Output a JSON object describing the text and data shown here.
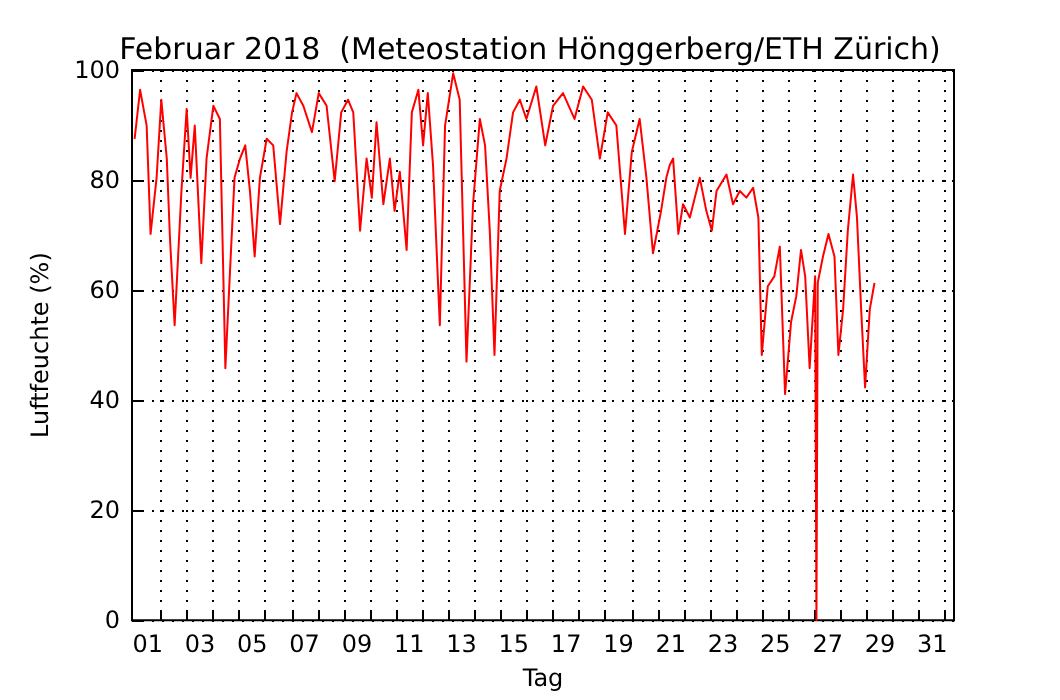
{
  "chart_data": {
    "type": "line",
    "title": "Februar 2018  (Meteostation Hönggerberg/ETH Zürich)",
    "xlabel": "Tag",
    "ylabel": "Luftfeuchte (%)",
    "x": [
      1.0,
      1.21,
      1.46,
      1.61,
      1.84,
      2.02,
      2.23,
      2.35,
      2.53,
      2.79,
      2.99,
      3.14,
      3.3,
      3.55,
      3.75,
      4.01,
      4.26,
      4.47,
      4.65,
      4.82,
      5.03,
      5.23,
      5.41,
      5.59,
      5.79,
      6.05,
      6.3,
      6.56,
      6.81,
      7.02,
      7.19,
      7.45,
      7.78,
      8.04,
      8.34,
      8.65,
      8.9,
      9.16,
      9.36,
      9.62,
      9.87,
      10.07,
      10.25,
      10.51,
      10.76,
      10.94,
      11.14,
      11.4,
      11.6,
      11.85,
      12.03,
      12.21,
      12.41,
      12.67,
      12.87,
      13.18,
      13.43,
      13.69,
      13.94,
      14.2,
      14.4,
      14.58,
      14.76,
      14.96,
      15.22,
      15.47,
      15.73,
      15.98,
      16.36,
      16.7,
      17.0,
      17.38,
      17.82,
      18.15,
      18.48,
      18.79,
      19.09,
      19.42,
      19.75,
      20.01,
      20.31,
      20.57,
      20.82,
      21.13,
      21.33,
      21.46,
      21.59,
      21.79,
      21.97,
      22.23,
      22.61,
      22.86,
      23.07,
      23.25,
      23.63,
      23.88,
      24.14,
      24.39,
      24.65,
      24.85,
      24.98,
      25.21,
      25.46,
      25.67,
      25.87,
      26.1,
      26.3,
      26.48,
      26.64,
      26.81,
      27.02,
      27.07,
      27.12,
      27.32,
      27.53,
      27.76,
      27.91,
      28.09,
      28.27,
      28.47,
      28.62,
      28.78,
      28.93,
      29.11,
      29.29
    ],
    "series": [
      {
        "color": "#ff0000",
        "values": [
          87.5,
          96.4,
          89.9,
          70.2,
          80.4,
          94.6,
          83.9,
          69.6,
          53.6,
          78,
          92.9,
          80.4,
          89.9,
          64.9,
          83.9,
          93.5,
          91.1,
          45.8,
          63.7,
          80.4,
          83.9,
          86.3,
          78,
          66.1,
          80.4,
          87.5,
          86.3,
          72,
          85.1,
          92.3,
          95.8,
          93.5,
          88.7,
          95.8,
          93.5,
          79.8,
          92.3,
          94.6,
          92.3,
          70.8,
          83.9,
          76.8,
          90.5,
          75.6,
          83.9,
          74.4,
          81.5,
          67.3,
          92.3,
          96.4,
          86.3,
          95.8,
          82.7,
          53.6,
          89.9,
          99.4,
          94.6,
          47,
          75.6,
          91.1,
          86.3,
          70.8,
          48.2,
          78,
          83.9,
          92.3,
          94.6,
          91.1,
          97,
          86.3,
          93.5,
          95.8,
          91.1,
          97,
          94.6,
          83.9,
          92.3,
          89.9,
          70.2,
          85.1,
          91.1,
          80.4,
          66.7,
          74.4,
          80.4,
          82.7,
          83.9,
          70.2,
          75.6,
          73.2,
          80.4,
          74.4,
          70.8,
          78,
          81,
          75.6,
          78,
          76.8,
          78.6,
          73.2,
          48.2,
          60.7,
          62.5,
          67.9,
          41.1,
          54.2,
          58.9,
          67.3,
          62.5,
          45.8,
          62.5,
          0,
          61.3,
          66.1,
          70.2,
          66.1,
          48.2,
          56.5,
          70.8,
          81,
          73.2,
          56.5,
          42.3,
          56.5,
          61.3
        ]
      }
    ],
    "xlim": [
      0.9,
      32.33
    ],
    "xticks": [
      {
        "value": 1.5,
        "label": "01"
      },
      {
        "value": 3.5,
        "label": "03"
      },
      {
        "value": 5.5,
        "label": "05"
      },
      {
        "value": 7.5,
        "label": "07"
      },
      {
        "value": 9.5,
        "label": "09"
      },
      {
        "value": 11.5,
        "label": "11"
      },
      {
        "value": 13.5,
        "label": "13"
      },
      {
        "value": 15.5,
        "label": "15"
      },
      {
        "value": 17.5,
        "label": "17"
      },
      {
        "value": 19.5,
        "label": "19"
      },
      {
        "value": 21.5,
        "label": "21"
      },
      {
        "value": 23.5,
        "label": "23"
      },
      {
        "value": 25.5,
        "label": "25"
      },
      {
        "value": 27.5,
        "label": "27"
      },
      {
        "value": 29.5,
        "label": "29"
      },
      {
        "value": 31.5,
        "label": "31"
      },
      {
        "value": 2,
        "label": null
      },
      {
        "value": 3,
        "label": null
      },
      {
        "value": 4,
        "label": null
      },
      {
        "value": 5,
        "label": null
      },
      {
        "value": 6,
        "label": null
      },
      {
        "value": 7,
        "label": null
      },
      {
        "value": 8,
        "label": null
      },
      {
        "value": 9,
        "label": null
      },
      {
        "value": 10,
        "label": null
      },
      {
        "value": 11,
        "label": null
      },
      {
        "value": 12,
        "label": null
      },
      {
        "value": 13,
        "label": null
      },
      {
        "value": 14,
        "label": null
      },
      {
        "value": 15,
        "label": null
      },
      {
        "value": 16,
        "label": null
      },
      {
        "value": 17,
        "label": null
      },
      {
        "value": 18,
        "label": null
      },
      {
        "value": 19,
        "label": null
      },
      {
        "value": 20,
        "label": null
      },
      {
        "value": 21,
        "label": null
      },
      {
        "value": 22,
        "label": null
      },
      {
        "value": 23,
        "label": null
      },
      {
        "value": 24,
        "label": null
      },
      {
        "value": 25,
        "label": null
      },
      {
        "value": 26,
        "label": null
      },
      {
        "value": 27,
        "label": null
      },
      {
        "value": 28,
        "label": null
      },
      {
        "value": 29,
        "label": null
      },
      {
        "value": 30,
        "label": null
      },
      {
        "value": 31,
        "label": null
      },
      {
        "value": 32,
        "label": null
      }
    ],
    "ylim": [
      0,
      100
    ],
    "yticks": [
      0,
      20,
      40,
      60,
      80,
      100
    ],
    "grid": true,
    "marker": "none",
    "line_style": "solid"
  }
}
